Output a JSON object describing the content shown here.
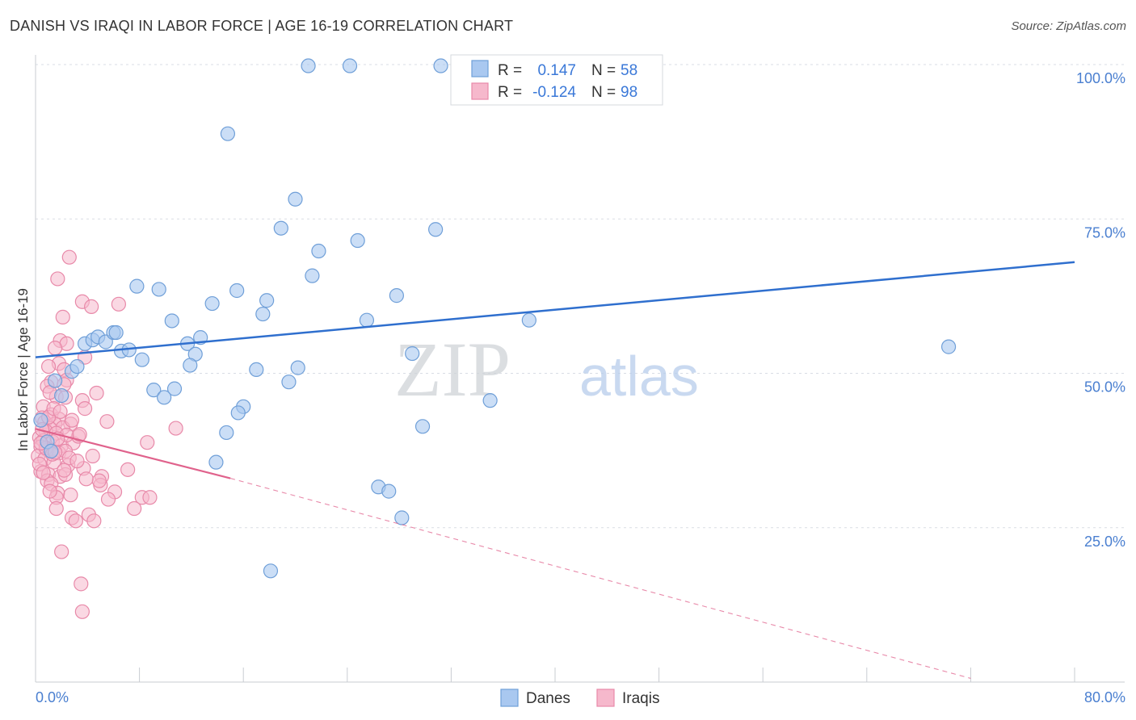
{
  "title": "DANISH VS IRAQI IN LABOR FORCE | AGE 16-19 CORRELATION CHART",
  "source": "Source: ZipAtlas.com",
  "watermark": {
    "zip": "ZIP",
    "atlas": "atlas"
  },
  "chart_data": {
    "type": "scatter",
    "title": "DANISH VS IRAQI IN LABOR FORCE | AGE 16-19 CORRELATION CHART",
    "xlabel": "",
    "ylabel": "In Labor Force | Age 16-19",
    "xlim": [
      0,
      80
    ],
    "ylim": [
      0,
      100
    ],
    "x_tick_labels": {
      "min": "0.0%",
      "max": "80.0%"
    },
    "y_ticks": [
      {
        "value": 25,
        "label": "25.0%"
      },
      {
        "value": 50,
        "label": "50.0%"
      },
      {
        "value": 75,
        "label": "75.0%"
      },
      {
        "value": 100,
        "label": "100.0%"
      }
    ],
    "grid": true,
    "legend": {
      "entries": [
        {
          "series": "Danes",
          "r_label": "R =",
          "r_value": "0.147",
          "n_label": "N =",
          "n_value": "58"
        },
        {
          "series": "Iraqis",
          "r_label": "R =",
          "r_value": "-0.124",
          "n_label": "N =",
          "n_value": "98"
        }
      ]
    },
    "colors": {
      "danes_fill": "#a9c8f0",
      "danes_stroke": "#6f9fd8",
      "danes_line": "#2f6fce",
      "iraqis_fill": "#f6b8cc",
      "iraqis_stroke": "#e889a9",
      "iraqis_line": "#e0628c",
      "grid": "#d9dde4",
      "tick": "#4a7fd0"
    },
    "series": [
      {
        "name": "Danes",
        "trend": {
          "x": [
            0,
            80
          ],
          "y": [
            52.6,
            68.0
          ]
        },
        "points": [
          [
            21.0,
            99.8
          ],
          [
            24.2,
            99.8
          ],
          [
            31.2,
            99.8
          ],
          [
            14.8,
            88.8
          ],
          [
            20.0,
            78.2
          ],
          [
            18.9,
            73.5
          ],
          [
            24.8,
            71.5
          ],
          [
            30.8,
            73.3
          ],
          [
            21.8,
            69.8
          ],
          [
            21.3,
            65.8
          ],
          [
            7.8,
            64.1
          ],
          [
            9.5,
            63.6
          ],
          [
            15.5,
            63.4
          ],
          [
            13.6,
            61.3
          ],
          [
            17.8,
            61.8
          ],
          [
            27.8,
            62.6
          ],
          [
            17.5,
            59.6
          ],
          [
            10.5,
            58.5
          ],
          [
            25.5,
            58.6
          ],
          [
            38.0,
            58.6
          ],
          [
            70.3,
            54.3
          ],
          [
            3.8,
            54.8
          ],
          [
            4.4,
            55.4
          ],
          [
            4.8,
            55.9
          ],
          [
            5.4,
            55.1
          ],
          [
            6.0,
            56.6
          ],
          [
            6.2,
            56.6
          ],
          [
            6.6,
            53.6
          ],
          [
            7.2,
            53.8
          ],
          [
            8.2,
            52.2
          ],
          [
            11.7,
            54.8
          ],
          [
            12.7,
            55.8
          ],
          [
            12.3,
            53.1
          ],
          [
            11.9,
            51.3
          ],
          [
            17.0,
            50.6
          ],
          [
            20.2,
            50.9
          ],
          [
            29.0,
            53.2
          ],
          [
            2.8,
            50.3
          ],
          [
            3.2,
            51.1
          ],
          [
            1.5,
            48.8
          ],
          [
            19.5,
            48.6
          ],
          [
            9.1,
            47.3
          ],
          [
            10.7,
            47.5
          ],
          [
            9.9,
            46.1
          ],
          [
            16.0,
            44.6
          ],
          [
            15.6,
            43.6
          ],
          [
            35.0,
            45.6
          ],
          [
            2.0,
            46.4
          ],
          [
            14.7,
            40.4
          ],
          [
            29.8,
            41.4
          ],
          [
            13.9,
            35.6
          ],
          [
            26.4,
            31.6
          ],
          [
            27.2,
            30.9
          ],
          [
            28.2,
            26.6
          ],
          [
            18.1,
            18.0
          ],
          [
            0.4,
            42.4
          ],
          [
            0.9,
            38.9
          ],
          [
            1.2,
            37.4
          ]
        ]
      },
      {
        "name": "Iraqis",
        "trend": {
          "x": [
            0,
            15
          ],
          "y": [
            41.0,
            33.0
          ]
        },
        "trend_extension": {
          "x": [
            15,
            72
          ],
          "y": [
            33.0,
            0.6
          ]
        },
        "points": [
          [
            2.6,
            68.8
          ],
          [
            1.7,
            65.3
          ],
          [
            3.6,
            61.6
          ],
          [
            4.3,
            60.8
          ],
          [
            6.4,
            61.2
          ],
          [
            2.1,
            59.1
          ],
          [
            1.9,
            55.3
          ],
          [
            2.4,
            54.8
          ],
          [
            1.5,
            54.1
          ],
          [
            3.8,
            52.6
          ],
          [
            1.8,
            51.6
          ],
          [
            1.0,
            51.1
          ],
          [
            2.2,
            50.6
          ],
          [
            2.4,
            48.9
          ],
          [
            1.2,
            48.6
          ],
          [
            0.9,
            47.9
          ],
          [
            1.6,
            46.2
          ],
          [
            2.3,
            46.1
          ],
          [
            4.7,
            46.8
          ],
          [
            3.6,
            45.6
          ],
          [
            0.6,
            44.6
          ],
          [
            3.8,
            44.3
          ],
          [
            1.2,
            43.3
          ],
          [
            0.5,
            42.8
          ],
          [
            1.8,
            42.6
          ],
          [
            0.7,
            42.1
          ],
          [
            1.5,
            41.8
          ],
          [
            1.1,
            41.1
          ],
          [
            0.8,
            40.6
          ],
          [
            2.7,
            41.8
          ],
          [
            2.1,
            41.2
          ],
          [
            1.6,
            40.3
          ],
          [
            5.5,
            42.2
          ],
          [
            10.8,
            41.1
          ],
          [
            0.3,
            39.6
          ],
          [
            0.6,
            39.1
          ],
          [
            1.3,
            38.9
          ],
          [
            2.0,
            38.3
          ],
          [
            2.9,
            38.7
          ],
          [
            3.3,
            39.8
          ],
          [
            8.6,
            38.8
          ],
          [
            0.4,
            38.1
          ],
          [
            0.9,
            37.6
          ],
          [
            1.8,
            37.1
          ],
          [
            2.3,
            37.4
          ],
          [
            4.4,
            36.6
          ],
          [
            0.2,
            36.6
          ],
          [
            0.7,
            36.1
          ],
          [
            1.4,
            35.6
          ],
          [
            2.5,
            35.1
          ],
          [
            3.7,
            34.6
          ],
          [
            7.1,
            34.4
          ],
          [
            0.4,
            34.1
          ],
          [
            1.0,
            33.6
          ],
          [
            1.9,
            33.3
          ],
          [
            2.3,
            33.6
          ],
          [
            5.1,
            33.3
          ],
          [
            5.0,
            31.9
          ],
          [
            0.9,
            32.6
          ],
          [
            1.2,
            32.1
          ],
          [
            6.1,
            30.8
          ],
          [
            1.7,
            30.6
          ],
          [
            1.6,
            29.9
          ],
          [
            8.2,
            29.9
          ],
          [
            8.8,
            29.9
          ],
          [
            1.6,
            28.1
          ],
          [
            7.6,
            28.1
          ],
          [
            4.1,
            27.1
          ],
          [
            2.8,
            26.6
          ],
          [
            3.1,
            26.1
          ],
          [
            4.5,
            26.1
          ],
          [
            2.0,
            21.1
          ],
          [
            3.5,
            15.9
          ],
          [
            3.6,
            11.4
          ],
          [
            0.5,
            40.9
          ],
          [
            1.0,
            42.9
          ],
          [
            2.4,
            40.0
          ],
          [
            3.4,
            40.1
          ],
          [
            1.4,
            44.3
          ],
          [
            0.3,
            35.3
          ],
          [
            0.8,
            37.9
          ],
          [
            1.7,
            39.4
          ],
          [
            2.6,
            36.3
          ],
          [
            3.2,
            35.8
          ],
          [
            4.9,
            32.6
          ],
          [
            1.1,
            30.9
          ],
          [
            0.6,
            33.9
          ],
          [
            1.3,
            36.9
          ],
          [
            2.2,
            34.3
          ],
          [
            1.9,
            43.8
          ],
          [
            2.8,
            42.4
          ],
          [
            0.4,
            38.7
          ],
          [
            1.5,
            37.2
          ],
          [
            3.9,
            32.9
          ],
          [
            2.7,
            30.3
          ],
          [
            5.6,
            29.6
          ],
          [
            1.1,
            46.9
          ],
          [
            2.2,
            48.2
          ]
        ]
      }
    ]
  },
  "bottom_legend": [
    {
      "label": "Danes"
    },
    {
      "label": "Iraqis"
    }
  ]
}
